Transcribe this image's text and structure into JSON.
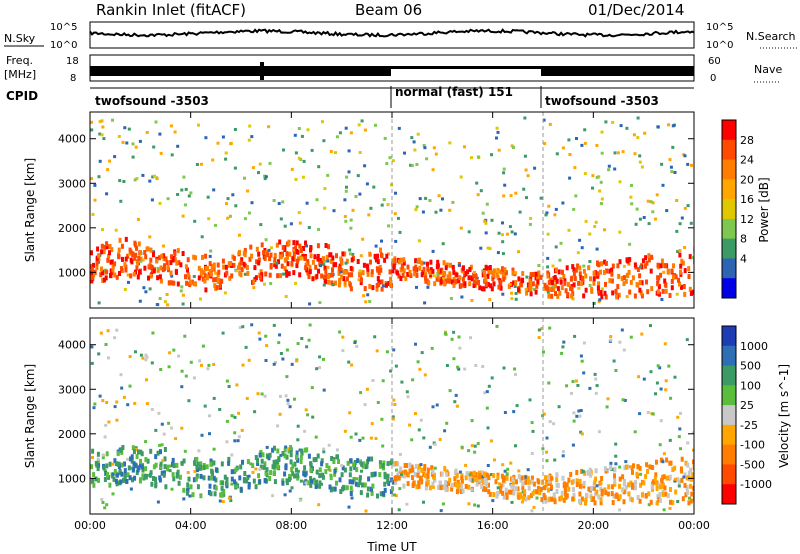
{
  "header": {
    "station": "Rankin Inlet (fitACF)",
    "beam": "Beam 06",
    "date": "01/Dec/2014"
  },
  "noise_panel": {
    "left_label": "N.Sky",
    "right_label": "N.Search",
    "ticks": [
      "10^5",
      "10^0"
    ]
  },
  "freq_panel": {
    "label_top": "Freq.",
    "label_unit": "[MHz]",
    "left_ticks": [
      "18",
      "8"
    ],
    "right_ticks": [
      "60",
      "0"
    ],
    "right_label": "Nave"
  },
  "cpid_panel": {
    "label": "CPID",
    "segments": [
      {
        "text": "twofsound -3503",
        "start_hour": 0
      },
      {
        "text": "normal (fast) 151",
        "start_hour": 12
      },
      {
        "text": "twofsound -3503",
        "start_hour": 18
      }
    ]
  },
  "chart_data": [
    {
      "type": "heatmap",
      "name": "power",
      "ylabel": "Slant Range [km]",
      "xlim": [
        0,
        24
      ],
      "ylim": [
        200,
        4600
      ],
      "yticks": [
        "1000",
        "2000",
        "3000",
        "4000"
      ],
      "colorbar": {
        "label": "Power [dB]",
        "ticks": [
          "28",
          "24",
          "20",
          "16",
          "12",
          "8",
          "4"
        ],
        "colors": [
          "#ff0000",
          "#ff4a00",
          "#ff7d00",
          "#ffa600",
          "#e0c800",
          "#7ec850",
          "#3c9a64",
          "#2d64b4",
          "#0000e6"
        ]
      },
      "bands": [
        {
          "hour": 0.5,
          "lo": 700,
          "hi": 1500,
          "level": "strong"
        },
        {
          "hour": 2,
          "lo": 800,
          "hi": 1700,
          "level": "strong"
        },
        {
          "hour": 4,
          "lo": 900,
          "hi": 1800,
          "level": "strong"
        },
        {
          "hour": 6,
          "lo": 800,
          "hi": 1500,
          "level": "strong"
        },
        {
          "hour": 8,
          "lo": 700,
          "hi": 1500,
          "level": "strong"
        },
        {
          "hour": 10,
          "lo": 900,
          "hi": 1600,
          "level": "strong"
        },
        {
          "hour": 12,
          "lo": 900,
          "hi": 1500,
          "level": "strong"
        },
        {
          "hour": 14,
          "lo": 800,
          "hi": 1300,
          "level": "strong"
        },
        {
          "hour": 16,
          "lo": 700,
          "hi": 1100,
          "level": "strong"
        },
        {
          "hour": 18,
          "lo": 500,
          "hi": 1000,
          "level": "strong"
        },
        {
          "hour": 20,
          "lo": 500,
          "hi": 1100,
          "level": "strong"
        },
        {
          "hour": 22,
          "lo": 600,
          "hi": 1400,
          "level": "strong"
        },
        {
          "hour": 23.8,
          "lo": 700,
          "hi": 1600,
          "level": "strong"
        }
      ]
    },
    {
      "type": "heatmap",
      "name": "velocity",
      "ylabel": "Slant Range [km]",
      "xlabel": "Time UT",
      "xlim": [
        0,
        24
      ],
      "ylim": [
        200,
        4600
      ],
      "yticks": [
        "1000",
        "2000",
        "3000",
        "4000"
      ],
      "xticks": [
        "00:00",
        "04:00",
        "08:00",
        "12:00",
        "16:00",
        "20:00",
        "00:00"
      ],
      "colorbar": {
        "label": "Velocity [m s^-1]",
        "ticks": [
          "1000",
          "500",
          "100",
          "25",
          "-25",
          "-100",
          "-500",
          "-1000"
        ],
        "colors": [
          "#1e3cb4",
          "#2d6eb4",
          "#3c9a64",
          "#5abe3c",
          "#c8c8c8",
          "#ffa600",
          "#ff7d00",
          "#ff4a00",
          "#ff0000"
        ]
      }
    }
  ]
}
